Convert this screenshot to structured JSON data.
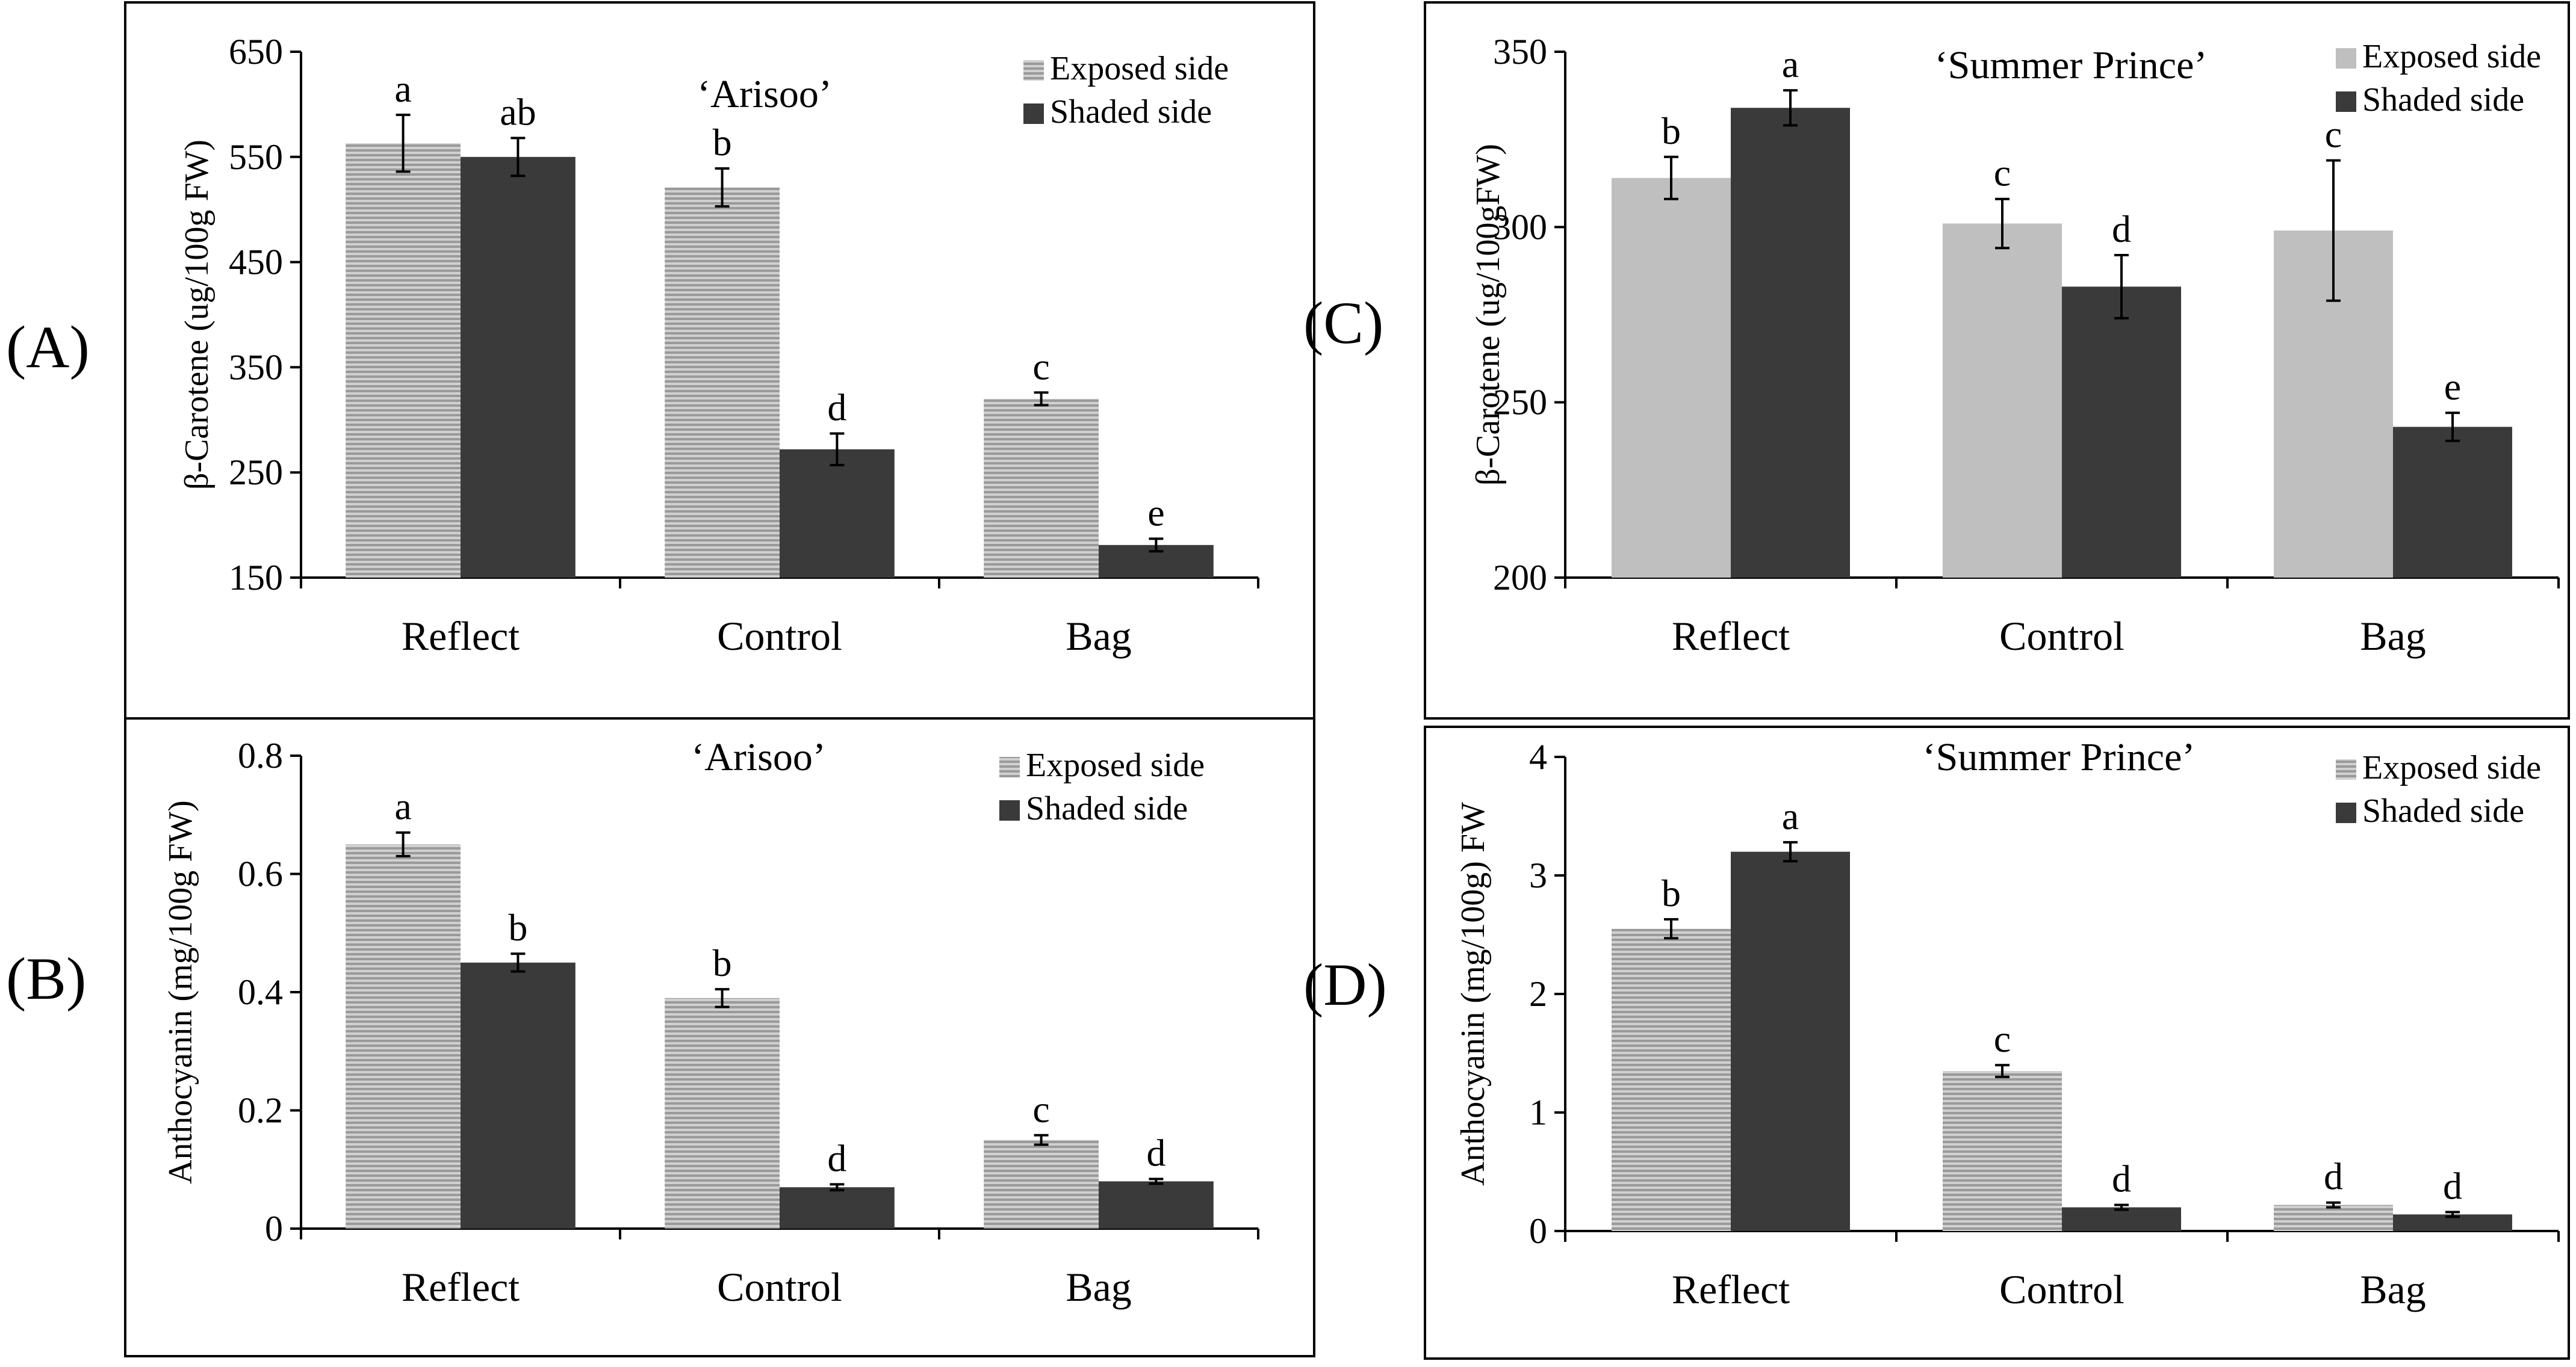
{
  "colors": {
    "exposed_solid": "#bfbfbf",
    "exposed_hatch": "#b4b4b4",
    "shaded": "#3a3a3a",
    "axis": "#000000",
    "errorbar": "#000000"
  },
  "panels": [
    {
      "label": "(A)",
      "chart_data": {
        "type": "bar",
        "title": "‘Arisoo’",
        "ylabel": "β-Carotene  (ug/100g  FW)",
        "categories": [
          "Reflect",
          "Control",
          "Bag"
        ],
        "ylim": [
          150,
          650
        ],
        "yticks": [
          150,
          250,
          350,
          450,
          550,
          650
        ],
        "ytick_labels": [
          "150",
          "250",
          "350",
          "450",
          "550",
          "650"
        ],
        "pattern": "hatched",
        "series": [
          {
            "name": "Exposed side",
            "values": [
              563,
              521,
              320
            ],
            "errors": [
              27,
              18,
              6
            ],
            "letters": [
              "a",
              "b",
              "c"
            ]
          },
          {
            "name": "Shaded side",
            "values": [
              550,
              272,
              181
            ],
            "errors": [
              18,
              15,
              6
            ],
            "letters": [
              "ab",
              "d",
              "e"
            ]
          }
        ]
      }
    },
    {
      "label": "(B)",
      "chart_data": {
        "type": "bar",
        "title": "‘Arisoo’",
        "ylabel": "Anthocyanin (mg/100g FW)",
        "categories": [
          "Reflect",
          "Control",
          "Bag"
        ],
        "ylim": [
          0,
          0.8
        ],
        "yticks": [
          0,
          0.2,
          0.4,
          0.6,
          0.8
        ],
        "ytick_labels": [
          "0",
          "0.2",
          "0.4",
          "0.6",
          "0.8"
        ],
        "pattern": "hatched",
        "series": [
          {
            "name": "Exposed side",
            "values": [
              0.65,
              0.39,
              0.15
            ],
            "errors": [
              0.02,
              0.015,
              0.008
            ],
            "letters": [
              "a",
              "b",
              "c"
            ]
          },
          {
            "name": "Shaded side",
            "values": [
              0.45,
              0.07,
              0.08
            ],
            "errors": [
              0.015,
              0.005,
              0.004
            ],
            "letters": [
              "b",
              "d",
              "d"
            ]
          }
        ]
      }
    },
    {
      "label": "(C)",
      "chart_data": {
        "type": "bar",
        "title": "‘Summer Prince’",
        "ylabel": "β-Carotene  (ug/100gFW)",
        "categories": [
          "Reflect",
          "Control",
          "Bag"
        ],
        "ylim": [
          200,
          350
        ],
        "yticks": [
          200,
          250,
          300,
          350
        ],
        "ytick_labels": [
          "200",
          "250",
          "300",
          "350"
        ],
        "pattern": "solid",
        "series": [
          {
            "name": "Exposed side",
            "values": [
              314,
              301,
              299
            ],
            "errors": [
              6,
              7,
              20
            ],
            "letters": [
              "b",
              "c",
              "c"
            ]
          },
          {
            "name": "Shaded side",
            "values": [
              334,
              283,
              243
            ],
            "errors": [
              5,
              9,
              4
            ],
            "letters": [
              "a",
              "d",
              "e"
            ]
          }
        ]
      }
    },
    {
      "label": "(D)",
      "chart_data": {
        "type": "bar",
        "title": "‘Summer Prince’",
        "ylabel": "Anthocyanin (mg/100g) FW",
        "categories": [
          "Reflect",
          "Control",
          "Bag"
        ],
        "ylim": [
          0,
          4
        ],
        "yticks": [
          0,
          1,
          2,
          3,
          4
        ],
        "ytick_labels": [
          "0",
          "1",
          "2",
          "3",
          "4"
        ],
        "pattern": "hatched",
        "series": [
          {
            "name": "Exposed side",
            "values": [
              2.55,
              1.35,
              0.22
            ],
            "errors": [
              0.08,
              0.05,
              0.02
            ],
            "letters": [
              "b",
              "c",
              "d"
            ]
          },
          {
            "name": "Shaded side",
            "values": [
              3.2,
              0.2,
              0.14
            ],
            "errors": [
              0.08,
              0.02,
              0.02
            ],
            "letters": [
              "a",
              "d",
              "d"
            ]
          }
        ]
      }
    }
  ]
}
